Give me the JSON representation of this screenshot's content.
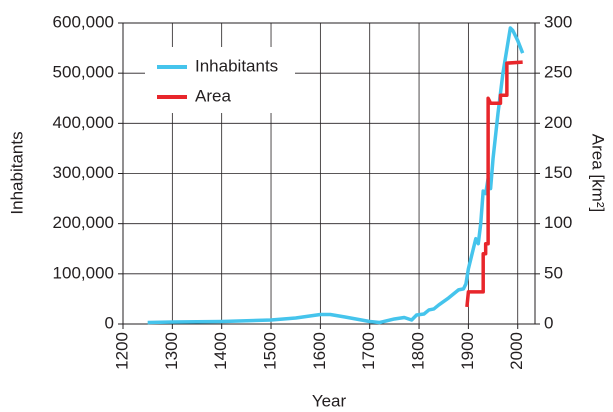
{
  "chart_data": {
    "type": "line",
    "xlabel": "Year",
    "ylabel": "Inhabitants",
    "y2label": "Area [km²]",
    "xlim": [
      1200,
      2035
    ],
    "xticks": [
      1200,
      1300,
      1400,
      1500,
      1600,
      1700,
      1800,
      1900,
      2000
    ],
    "ylim": [
      0,
      600000
    ],
    "yticks": [
      0,
      {
        "value": 100000,
        "label": "100,000"
      },
      {
        "value": 200000,
        "label": "200,000"
      },
      {
        "value": 300000,
        "label": "300,000"
      },
      {
        "value": 400000,
        "label": "400,000"
      },
      {
        "value": 500000,
        "label": "500,000"
      },
      {
        "value": 600000,
        "label": "600,000"
      }
    ],
    "y2lim": [
      0,
      300
    ],
    "y2ticks": [
      0,
      50,
      100,
      150,
      200,
      250,
      300
    ],
    "grid": true,
    "legend": "upper left",
    "series": [
      {
        "name": "Inhabitants",
        "color": "#45c4ec",
        "x": [
          1250,
          1300,
          1400,
          1500,
          1550,
          1600,
          1620,
          1650,
          1700,
          1720,
          1750,
          1770,
          1785,
          1795,
          1810,
          1820,
          1830,
          1840,
          1850,
          1860,
          1870,
          1880,
          1890,
          1895,
          1900,
          1910,
          1915,
          1920,
          1925,
          1930,
          1935,
          1940,
          1945,
          1950,
          1960,
          1970,
          1980,
          1985,
          1990,
          2000,
          2010
        ],
        "values": [
          3000,
          4000,
          5000,
          8000,
          12000,
          19000,
          19000,
          14000,
          5000,
          3000,
          10000,
          13000,
          8000,
          18000,
          20000,
          28000,
          30000,
          38000,
          45000,
          52000,
          60000,
          68000,
          70000,
          80000,
          110000,
          150000,
          170000,
          160000,
          200000,
          265000,
          260000,
          290000,
          270000,
          330000,
          420000,
          500000,
          560000,
          590000,
          585000,
          565000,
          540000
        ]
      },
      {
        "name": "Area",
        "color": "#e8262b",
        "axis": "y2",
        "x": [
          1897,
          1900,
          1930,
          1930,
          1935,
          1935,
          1940,
          1940,
          1945,
          1965,
          1965,
          1978,
          1978,
          2010
        ],
        "values": [
          17,
          32,
          32,
          70,
          70,
          80,
          80,
          225,
          220,
          220,
          228,
          228,
          260,
          261
        ]
      }
    ]
  }
}
